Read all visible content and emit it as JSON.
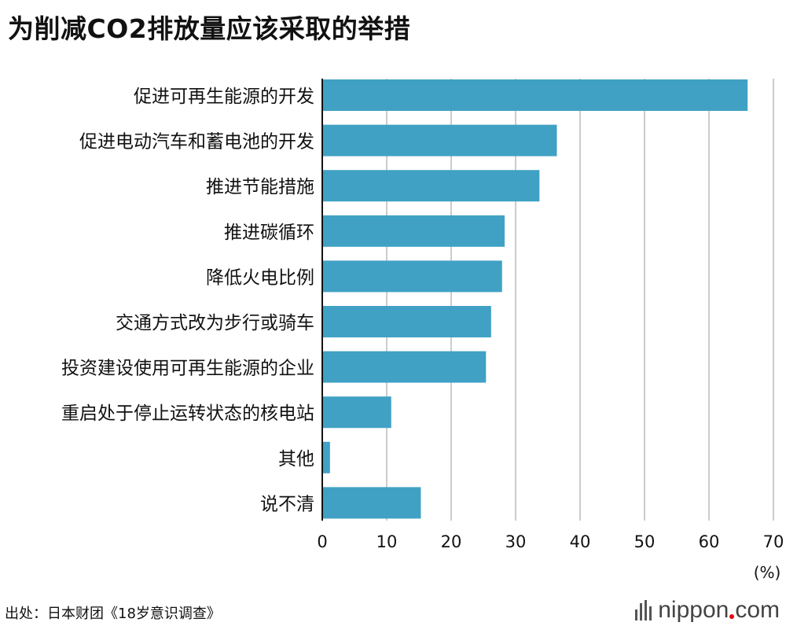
{
  "title": "为削减CO2排放量应该采取的举措",
  "source": "出处：日本财团《18岁意识调查》",
  "brand": {
    "name_part1": "nippon",
    "name_part2": "com",
    "dot_color": "#e60012"
  },
  "colors": {
    "bar": "#40a1c4",
    "grid": "#cccccc",
    "axis": "#111111"
  },
  "chart_data": {
    "type": "bar",
    "orientation": "horizontal",
    "title": "为削减CO2排放量应该采取的举措",
    "unit_label": "(%)",
    "xlim": [
      0,
      70
    ],
    "xticks": [
      0,
      10,
      20,
      30,
      40,
      50,
      60,
      70
    ],
    "grid": true,
    "categories": [
      "促进可再生能源的开发",
      "促进电动汽车和蓄电池的开发",
      "推进节能措施",
      "推进碳循环",
      "降低火电比例",
      "交通方式改为步行或骑车",
      "投资建设使用可再生能源的企业",
      "重启处于停止运转状态的核电站",
      "其他",
      "说不清"
    ],
    "values": [
      66.0,
      36.4,
      33.7,
      28.3,
      27.9,
      26.2,
      25.4,
      10.7,
      1.2,
      15.3
    ]
  }
}
